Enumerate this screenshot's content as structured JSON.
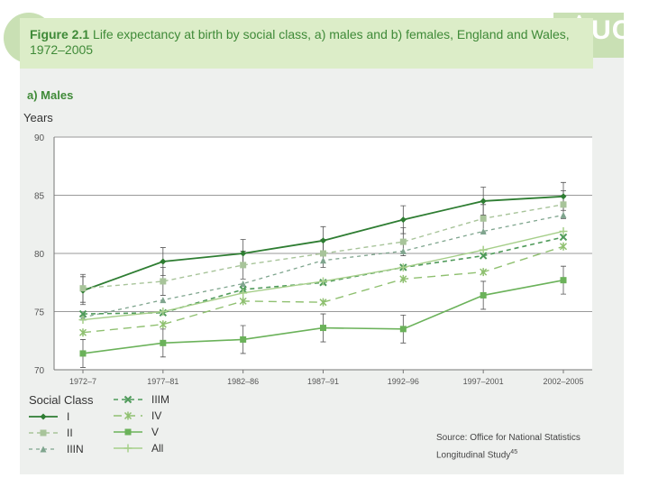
{
  "header": {
    "logo_text": "≜UCL",
    "figure_label": "Figure 2.1",
    "figure_title": "Life expectancy at birth by social class, a) males and b) females, England and Wales, 1972–2005"
  },
  "panel_label": "a) Males",
  "source": {
    "line1": "Source: Office for National Statistics",
    "line2": "Longitudinal Study",
    "superscript": "45"
  },
  "colors": {
    "I": "#2e7d32",
    "II": "#a8c49a",
    "IIIN": "#7fa58e",
    "IIIM": "#4f9a5a",
    "IV": "#8fc070",
    "V": "#6bb25a",
    "All": "#a6cf8a",
    "banner_text": "#3f8a38"
  },
  "chart_data": {
    "type": "line",
    "title": "",
    "ylabel": "Years",
    "xlabel": "",
    "ylim": [
      70,
      90
    ],
    "yticks": [
      70,
      75,
      80,
      85,
      90
    ],
    "grid": "horizontal",
    "legend_title": "Social Class",
    "legend_position": "bottom",
    "categories": [
      "1972–7",
      "1977–81",
      "1982–86",
      "1987–91",
      "1992–96",
      "1997–2001",
      "2002–2005"
    ],
    "series": [
      {
        "name": "I",
        "values": [
          76.8,
          79.3,
          80.0,
          81.1,
          82.9,
          84.5,
          84.9
        ]
      },
      {
        "name": "II",
        "values": [
          77.0,
          77.6,
          79.0,
          80.0,
          81.0,
          83.0,
          84.2
        ]
      },
      {
        "name": "IIIN",
        "values": [
          74.5,
          76.0,
          77.4,
          79.4,
          80.2,
          81.9,
          83.3
        ]
      },
      {
        "name": "IIIM",
        "values": [
          74.8,
          74.9,
          76.9,
          77.5,
          78.8,
          79.8,
          81.4
        ]
      },
      {
        "name": "IV",
        "values": [
          73.2,
          73.9,
          75.9,
          75.8,
          77.8,
          78.4,
          80.6
        ]
      },
      {
        "name": "V",
        "values": [
          71.4,
          72.3,
          72.6,
          73.6,
          73.5,
          76.4,
          77.7
        ]
      },
      {
        "name": "All",
        "values": [
          74.3,
          75.0,
          76.6,
          77.6,
          78.8,
          80.3,
          81.9
        ]
      }
    ]
  }
}
